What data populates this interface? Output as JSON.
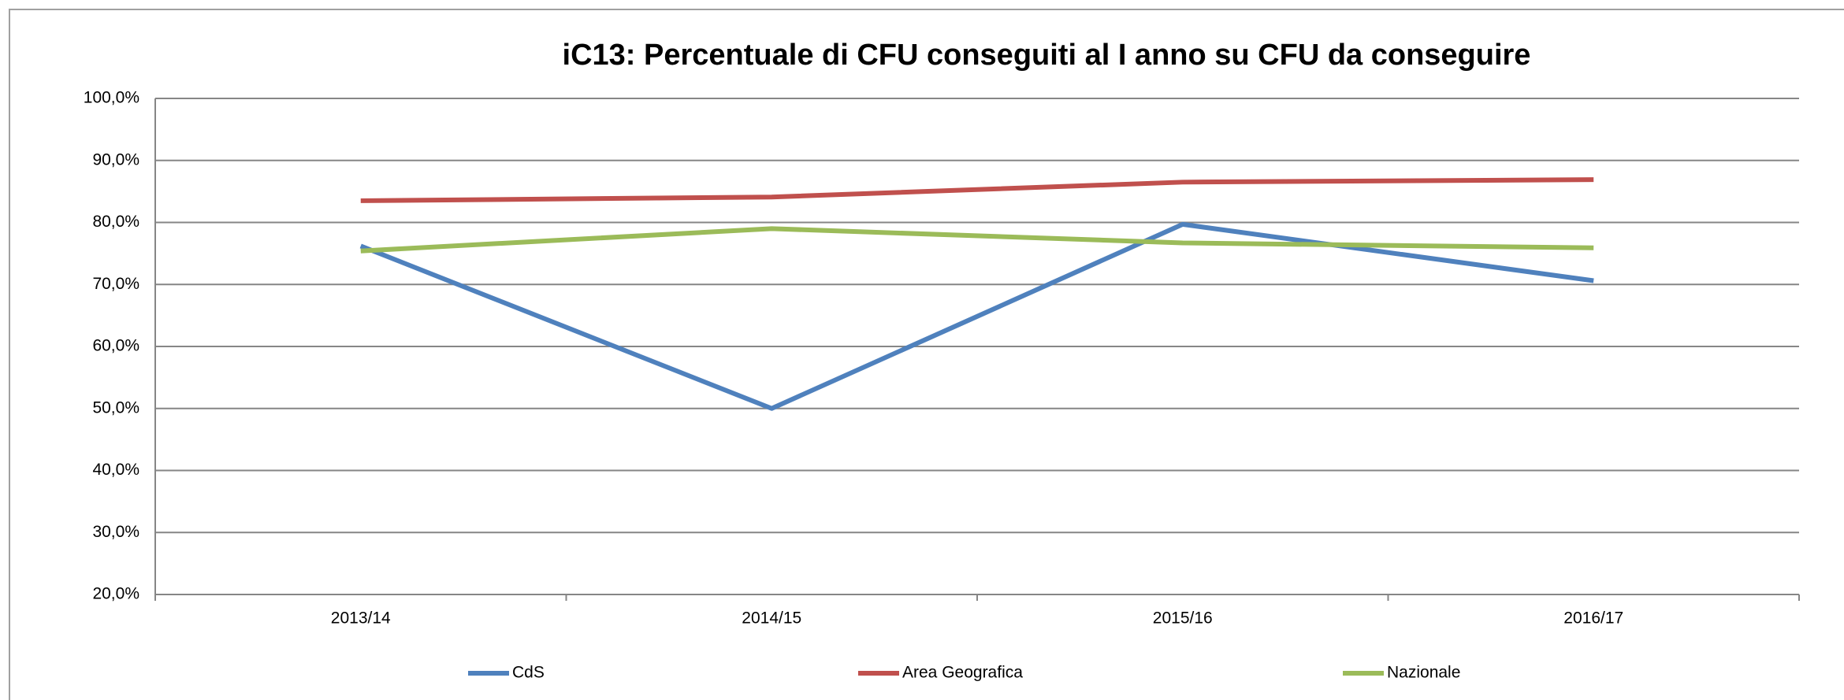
{
  "chart_data": {
    "type": "line",
    "title": "iC13: Percentuale di CFU conseguiti al I anno su CFU da conseguire",
    "categories": [
      "2013/14",
      "2014/15",
      "2015/16",
      "2016/17"
    ],
    "series": [
      {
        "name": "CdS",
        "color": "#4f81bd",
        "values": [
          76.2,
          50.0,
          79.7,
          70.6
        ]
      },
      {
        "name": "Area Geografica",
        "color": "#c0504d",
        "values": [
          83.5,
          84.1,
          86.5,
          86.9
        ]
      },
      {
        "name": "Nazionale",
        "color": "#9bbb59",
        "values": [
          75.4,
          79.0,
          76.7,
          75.9
        ]
      }
    ],
    "ylim": [
      20,
      100
    ],
    "yticks": [
      {
        "value": 20,
        "label": "20,0%"
      },
      {
        "value": 30,
        "label": "30,0%"
      },
      {
        "value": 40,
        "label": "40,0%"
      },
      {
        "value": 50,
        "label": "50,0%"
      },
      {
        "value": 60,
        "label": "60,0%"
      },
      {
        "value": 70,
        "label": "70,0%"
      },
      {
        "value": 80,
        "label": "80,0%"
      },
      {
        "value": 90,
        "label": "90,0%"
      },
      {
        "value": 100,
        "label": "100,0%"
      }
    ],
    "grid": true,
    "legend": "bottom"
  }
}
